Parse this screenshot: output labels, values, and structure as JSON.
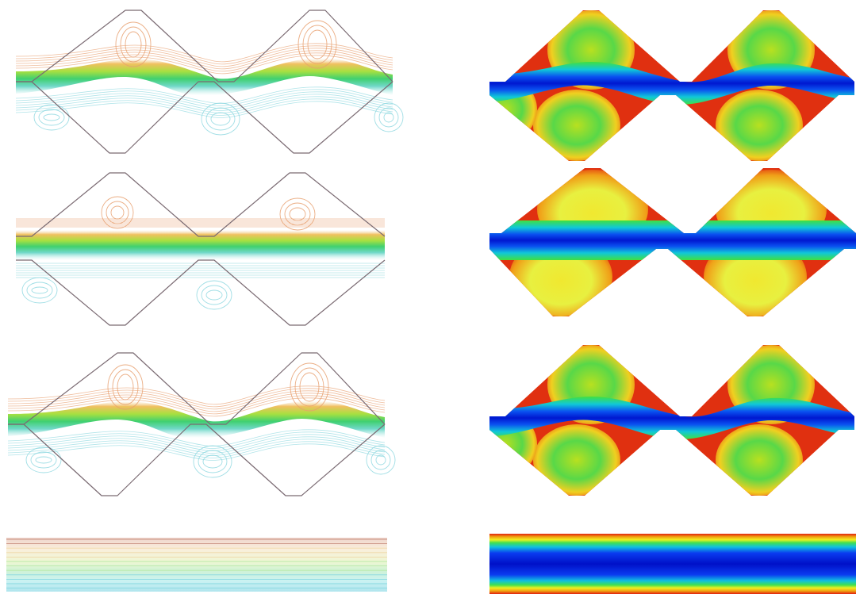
{
  "figure": {
    "panels": [
      {
        "row": 1,
        "column": "left",
        "style": "streamlines",
        "geometry": "wavy-channel",
        "phase": "shifted"
      },
      {
        "row": 1,
        "column": "right",
        "style": "filled-contours",
        "geometry": "wavy-channel",
        "phase": "shifted"
      },
      {
        "row": 2,
        "column": "left",
        "style": "streamlines",
        "geometry": "wavy-channel",
        "phase": "in-phase"
      },
      {
        "row": 2,
        "column": "right",
        "style": "filled-contours",
        "geometry": "wavy-channel",
        "phase": "in-phase"
      },
      {
        "row": 3,
        "column": "left",
        "style": "streamlines",
        "geometry": "wavy-channel",
        "phase": "shifted"
      },
      {
        "row": 3,
        "column": "right",
        "style": "filled-contours",
        "geometry": "wavy-channel",
        "phase": "shifted"
      },
      {
        "row": 4,
        "column": "left",
        "style": "streamlines",
        "geometry": "straight-channel"
      },
      {
        "row": 4,
        "column": "right",
        "style": "filled-contours",
        "geometry": "straight-channel"
      }
    ],
    "colors": {
      "wall": "#7a6a72",
      "upper_lines": "#e8a070",
      "lower_lines": "#8fd8e0",
      "core_green": "#58d058",
      "core_blue": "#0b2ff0",
      "hot_red": "#e03010",
      "orange": "#f08018",
      "yellow": "#f0f020",
      "green": "#48d848"
    }
  }
}
